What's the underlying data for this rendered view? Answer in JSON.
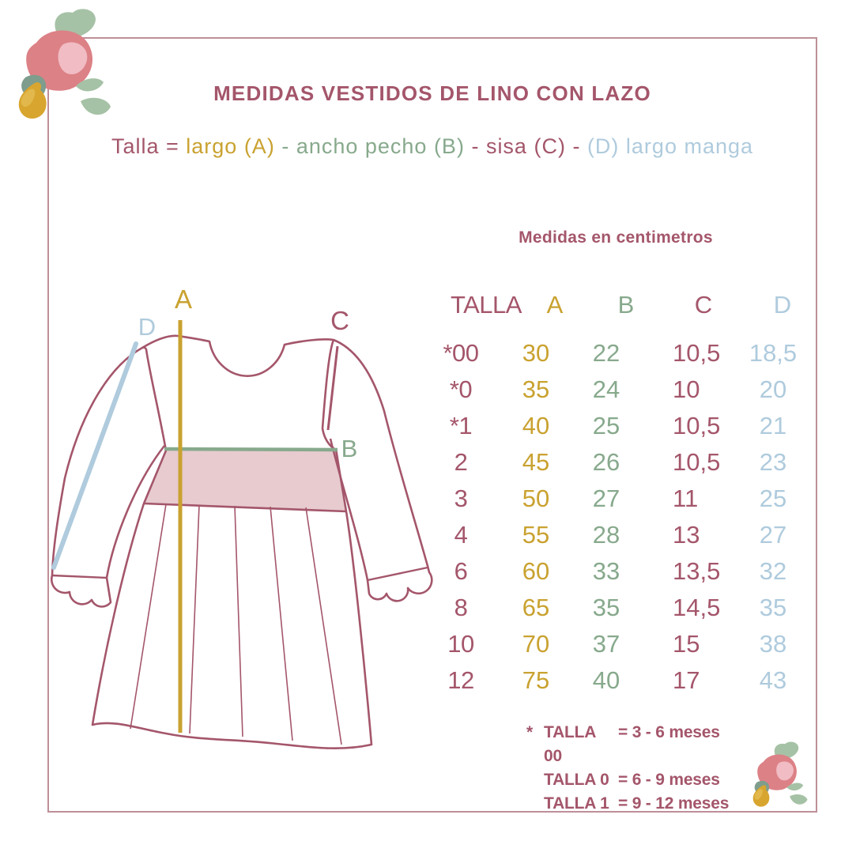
{
  "header": {
    "title": "MEDIDAS VESTIDOS DE LINO CON LAZO"
  },
  "subtitle": {
    "segments": [
      {
        "text": "Talla = ",
        "color": "maroon"
      },
      {
        "text": "largo (A)",
        "color": "gold"
      },
      {
        "text": " - ",
        "color": "green"
      },
      {
        "text": "ancho pecho (B)",
        "color": "green"
      },
      {
        "text": " - ",
        "color": "maroon"
      },
      {
        "text": "sisa (C)",
        "color": "maroon"
      },
      {
        "text": " - ",
        "color": "maroon"
      },
      {
        "text": "(D) largo manga",
        "color": "blue"
      }
    ]
  },
  "diagram": {
    "labels": {
      "A": "A",
      "B": "B",
      "C": "C",
      "D": "D"
    },
    "label_meanings": {
      "A": "largo",
      "B": "ancho pecho",
      "C": "sisa",
      "D": "largo manga"
    }
  },
  "table": {
    "caption": "Medidas en centimetros",
    "headers": [
      {
        "text": "TALLA",
        "color": "maroon"
      },
      {
        "text": "A",
        "color": "gold"
      },
      {
        "text": "B",
        "color": "green"
      },
      {
        "text": "C",
        "color": "maroon"
      },
      {
        "text": "D",
        "color": "blue"
      }
    ],
    "rows": [
      {
        "talla": "*00",
        "a": "30",
        "b": "22",
        "c": "10,5",
        "d": "18,5"
      },
      {
        "talla": "*0",
        "a": "35",
        "b": "24",
        "c": "10",
        "d": "20"
      },
      {
        "talla": "*1",
        "a": "40",
        "b": "25",
        "c": "10,5",
        "d": "21"
      },
      {
        "talla": "2",
        "a": "45",
        "b": "26",
        "c": "10,5",
        "d": "23"
      },
      {
        "talla": "3",
        "a": "50",
        "b": "27",
        "c": "11",
        "d": "25"
      },
      {
        "talla": "4",
        "a": "55",
        "b": "28",
        "c": "13",
        "d": "27"
      },
      {
        "talla": "6",
        "a": "60",
        "b": "33",
        "c": "13,5",
        "d": "32"
      },
      {
        "talla": "8",
        "a": "65",
        "b": "35",
        "c": "14,5",
        "d": "35"
      },
      {
        "talla": "10",
        "a": "70",
        "b": "37",
        "c": "15",
        "d": "38"
      },
      {
        "talla": "12",
        "a": "75",
        "b": "40",
        "c": "17",
        "d": "43"
      }
    ]
  },
  "footnotes": [
    {
      "prefix": "*",
      "label": "TALLA 00",
      "value": "= 3 - 6 meses"
    },
    {
      "prefix": "",
      "label": "TALLA 0",
      "value": "= 6 - 9 meses"
    },
    {
      "prefix": "",
      "label": "TALLA 1",
      "value": "= 9 - 12 meses"
    }
  ],
  "colors": {
    "maroon": "#A4566B",
    "gold": "#C9A230",
    "green": "#87A98C",
    "blue": "#AFCBDD",
    "frame": "#BE8F98",
    "band": "#E7CBCF",
    "rose": "#DC8186",
    "rose_light": "#F1BCC4",
    "leaf": "#A6C2A6",
    "leaf_dark": "#7E9D8D",
    "pear": "#D8A52F",
    "pear_light": "#E2B84C"
  }
}
